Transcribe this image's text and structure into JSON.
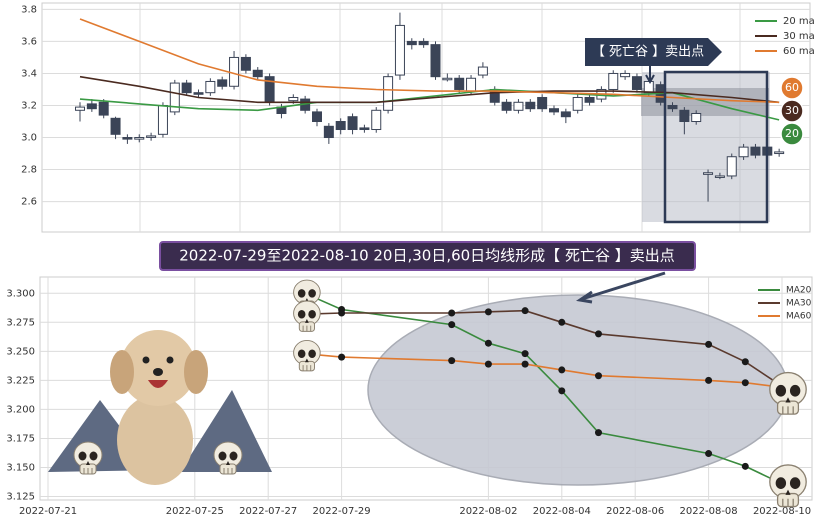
{
  "chart_data": [
    {
      "type": "candlestick",
      "open": [
        3.17,
        3.21,
        3.22,
        3.12,
        3.0,
        2.99,
        3.01,
        3.02,
        3.16,
        3.34,
        3.28,
        3.28,
        3.36,
        3.32,
        3.5,
        3.42,
        3.38,
        3.19,
        3.23,
        3.24,
        3.16,
        3.07,
        3.1,
        3.13,
        3.06,
        3.05,
        3.17,
        3.39,
        3.6,
        3.6,
        3.58,
        3.37,
        3.37,
        3.29,
        3.39,
        3.3,
        3.22,
        3.17,
        3.22,
        3.25,
        3.18,
        3.16,
        3.17,
        3.25,
        3.24,
        3.3,
        3.38,
        3.38,
        3.28,
        3.33,
        3.2,
        3.17,
        3.1,
        2.77,
        2.76,
        2.76,
        2.88,
        2.94,
        2.94,
        2.9
      ],
      "close": [
        3.19,
        3.18,
        3.14,
        3.02,
        2.99,
        3.0,
        3.01,
        3.2,
        3.34,
        3.28,
        3.27,
        3.35,
        3.32,
        3.5,
        3.42,
        3.38,
        3.22,
        3.15,
        3.25,
        3.17,
        3.1,
        3.0,
        3.05,
        3.05,
        3.05,
        3.17,
        3.38,
        3.7,
        3.58,
        3.58,
        3.38,
        3.37,
        3.3,
        3.37,
        3.44,
        3.22,
        3.17,
        3.22,
        3.18,
        3.18,
        3.16,
        3.13,
        3.25,
        3.22,
        3.3,
        3.4,
        3.4,
        3.3,
        3.35,
        3.22,
        3.18,
        3.1,
        3.15,
        2.78,
        2.76,
        2.88,
        2.94,
        2.89,
        2.89,
        2.91
      ],
      "high": [
        3.22,
        3.24,
        3.24,
        3.13,
        3.02,
        3.02,
        3.03,
        3.22,
        3.36,
        3.36,
        3.3,
        3.37,
        3.38,
        3.54,
        3.52,
        3.44,
        3.4,
        3.21,
        3.27,
        3.26,
        3.18,
        3.09,
        3.12,
        3.15,
        3.08,
        3.19,
        3.4,
        3.78,
        3.62,
        3.62,
        3.6,
        3.4,
        3.39,
        3.39,
        3.47,
        3.32,
        3.24,
        3.24,
        3.24,
        3.27,
        3.2,
        3.18,
        3.27,
        3.27,
        3.32,
        3.42,
        3.42,
        3.4,
        3.37,
        3.35,
        3.22,
        3.19,
        3.17,
        2.8,
        2.78,
        2.9,
        2.96,
        2.96,
        2.96,
        2.93
      ],
      "low": [
        3.1,
        3.16,
        3.12,
        2.99,
        2.96,
        2.97,
        2.98,
        3.0,
        3.14,
        3.26,
        3.25,
        3.26,
        3.3,
        3.3,
        3.4,
        3.36,
        3.2,
        3.12,
        3.21,
        3.15,
        3.07,
        2.96,
        3.02,
        3.02,
        3.03,
        3.03,
        3.15,
        3.36,
        3.55,
        3.56,
        3.36,
        3.35,
        3.28,
        3.27,
        3.37,
        3.2,
        3.15,
        3.15,
        3.16,
        3.16,
        3.14,
        3.09,
        3.15,
        3.2,
        3.22,
        3.28,
        3.36,
        3.28,
        3.26,
        3.2,
        3.16,
        3.02,
        3.08,
        2.6,
        2.74,
        2.74,
        2.86,
        2.87,
        2.87,
        2.88
      ],
      "series": [
        {
          "name": "20 ma",
          "color": "#3a9a44",
          "x": [
            0,
            5,
            10,
            15,
            20,
            25,
            30,
            35,
            40,
            45,
            50,
            55,
            59
          ],
          "values": [
            3.24,
            3.21,
            3.18,
            3.17,
            3.22,
            3.22,
            3.26,
            3.3,
            3.28,
            3.26,
            3.28,
            3.18,
            3.11
          ]
        },
        {
          "name": "30 ma",
          "color": "#4a2a20",
          "x": [
            0,
            5,
            10,
            15,
            20,
            25,
            30,
            35,
            40,
            45,
            50,
            55,
            59
          ],
          "values": [
            3.38,
            3.32,
            3.25,
            3.22,
            3.22,
            3.22,
            3.25,
            3.28,
            3.29,
            3.29,
            3.28,
            3.25,
            3.22
          ]
        },
        {
          "name": "60 ma",
          "color": "#e07a30",
          "x": [
            0,
            5,
            10,
            15,
            20,
            25,
            30,
            35,
            40,
            45,
            50,
            55,
            59
          ],
          "values": [
            3.74,
            3.6,
            3.46,
            3.36,
            3.32,
            3.3,
            3.29,
            3.29,
            3.28,
            3.27,
            3.25,
            3.23,
            3.22
          ]
        }
      ],
      "ylim": [
        2.41,
        3.84
      ],
      "yticks": [
        2.6,
        2.8,
        {
          "value": 3,
          "label": "3.0"
        },
        3.2,
        3.4,
        3.6,
        3.8
      ],
      "grid": true,
      "annotation": "【 死亡谷 】卖出点",
      "badges": [
        {
          "label": "60",
          "color": "#e07a30"
        },
        {
          "label": "30",
          "color": "#4a2a20"
        },
        {
          "label": "20",
          "color": "#3a8a3e"
        }
      ]
    },
    {
      "type": "line",
      "title": "2022-07-29至2022-08-10 20日,30日,60日均线形成【 死亡谷 】卖出点",
      "x": [
        "2022-07-28",
        "2022-07-29",
        "2022-08-01",
        "2022-08-02",
        "2022-08-03",
        "2022-08-04",
        "2022-08-05",
        "2022-08-08",
        "2022-08-09",
        "2022-08-10"
      ],
      "series": [
        {
          "name": "MA20",
          "color": "#3a8a3e",
          "values": [
            3.3,
            3.286,
            3.273,
            3.257,
            3.248,
            3.216,
            3.18,
            3.162,
            3.151,
            3.136
          ]
        },
        {
          "name": "MA30",
          "color": "#5a3a2e",
          "values": [
            3.282,
            3.283,
            3.283,
            3.284,
            3.285,
            3.275,
            3.265,
            3.256,
            3.241,
            3.22
          ]
        },
        {
          "name": "MA60",
          "color": "#e07a30",
          "values": [
            3.248,
            3.245,
            3.242,
            3.239,
            3.239,
            3.234,
            3.229,
            3.225,
            3.223,
            3.219
          ]
        }
      ],
      "xlim": [
        "2022-07-21",
        "2022-08-10"
      ],
      "xticks": [
        "2022-07-21",
        "2022-07-25",
        "2022-07-27",
        "2022-07-29",
        "2022-08-02",
        "2022-08-04",
        "2022-08-06",
        "2022-08-08",
        "2022-08-10"
      ],
      "ylim": [
        3.122,
        3.314
      ],
      "yticks": [
        3.125,
        {
          "value": 3.15,
          "label": "3.150"
        },
        3.175,
        {
          "value": 3.2,
          "label": "3.200"
        },
        3.225,
        {
          "value": 3.25,
          "label": "3.250"
        },
        3.275,
        {
          "value": 3.3,
          "label": "3.300"
        }
      ],
      "grid": true
    }
  ]
}
